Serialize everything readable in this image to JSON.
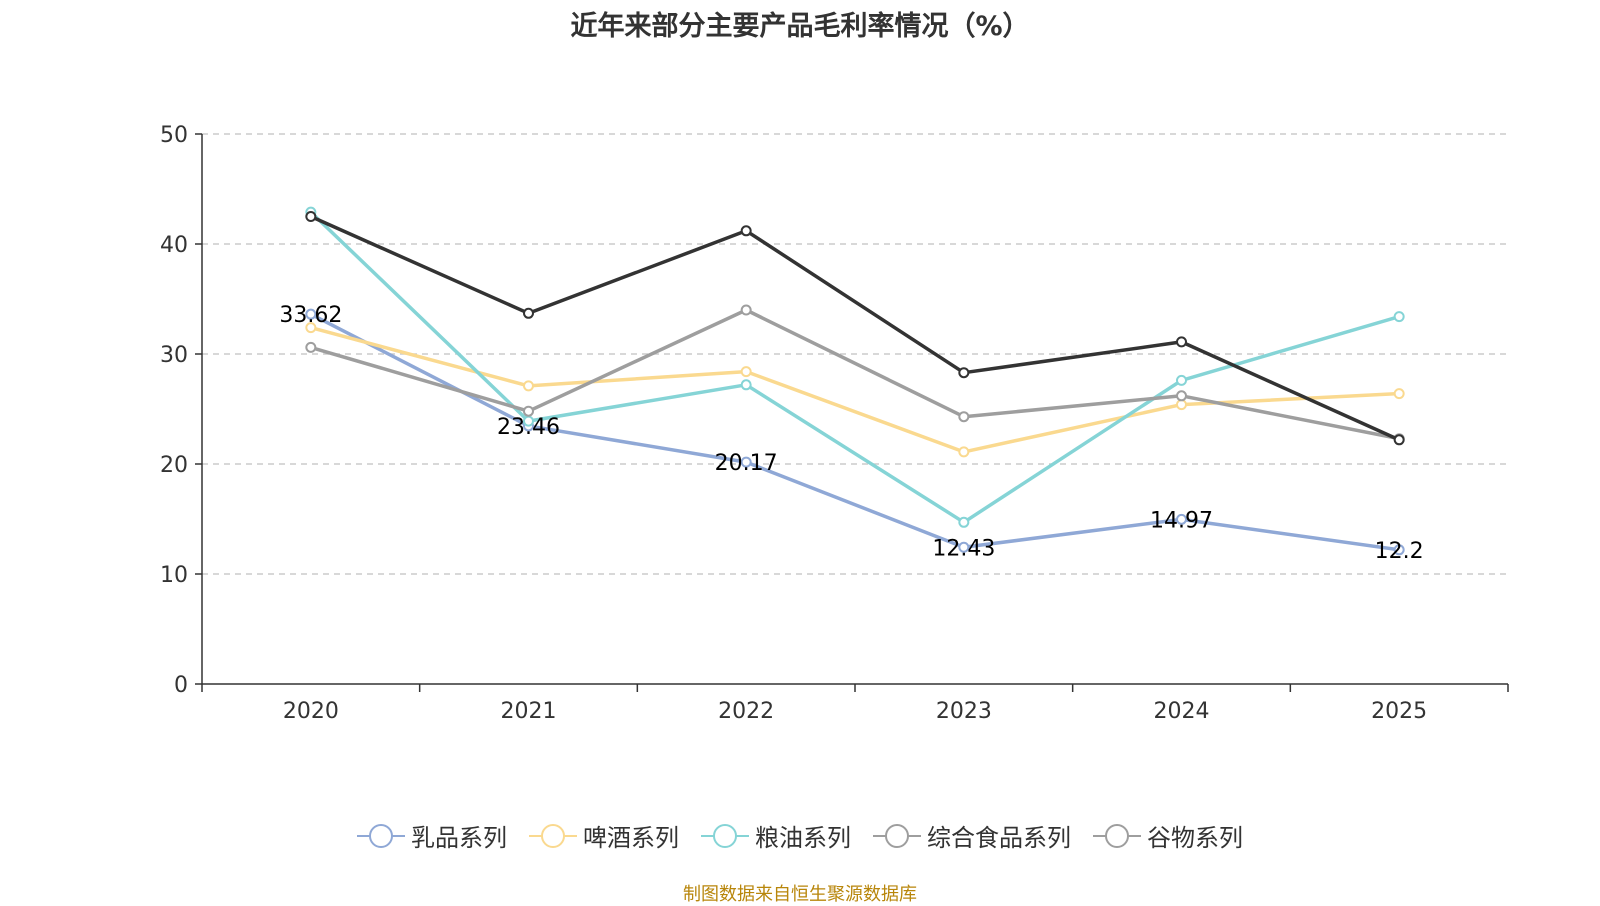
{
  "chart_data": {
    "type": "line",
    "title": "近年来部分主要产品毛利率情况（%）",
    "categories": [
      "2020",
      "2021",
      "2022",
      "2023",
      "2024",
      "2025"
    ],
    "ylim": [
      0,
      50
    ],
    "yticks": [
      "0",
      "10",
      "20",
      "30",
      "40",
      "50"
    ],
    "grid": true,
    "legend_position": "bottom",
    "series": [
      {
        "name": "乳品系列",
        "color": "#8fa8d6",
        "values": [
          33.62,
          23.46,
          20.17,
          12.43,
          14.97,
          12.2
        ],
        "labels": [
          "33.62",
          "23.46",
          "20.17",
          "12.43",
          "14.97",
          "12.2"
        ]
      },
      {
        "name": "啤酒系列",
        "color": "#fad98f",
        "values": [
          32.4,
          27.1,
          28.4,
          21.1,
          25.4,
          26.4
        ]
      },
      {
        "name": "粮油系列",
        "color": "#85d4d6",
        "values": [
          42.9,
          23.9,
          27.2,
          14.7,
          27.6,
          33.4
        ]
      },
      {
        "name": "综合食品系列",
        "color": "#9e9e9e",
        "values": [
          30.6,
          24.8,
          34.0,
          24.3,
          26.2,
          22.3
        ]
      },
      {
        "name": "谷物系列",
        "color": "#333333",
        "legend_color": "#9e9e9e",
        "values": [
          42.5,
          33.7,
          41.2,
          28.3,
          31.1,
          22.2
        ]
      }
    ]
  },
  "source_note": "制图数据来自恒生聚源数据库"
}
